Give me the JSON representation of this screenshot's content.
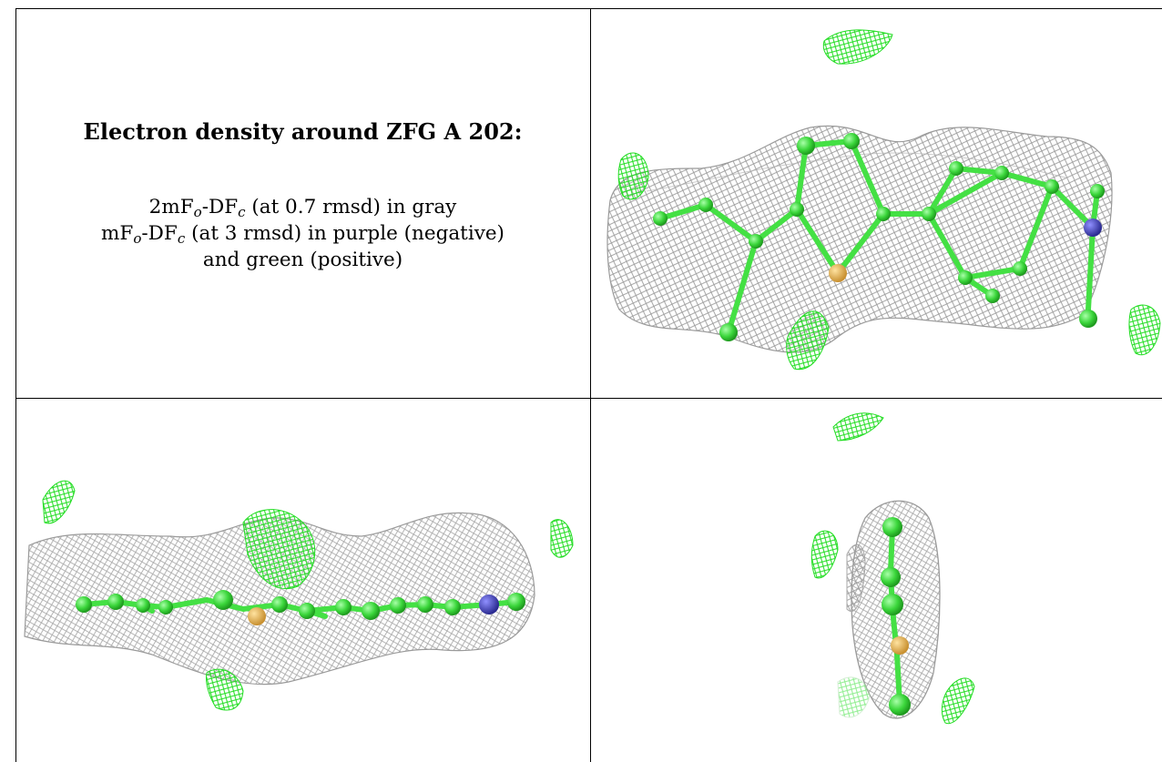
{
  "caption": {
    "title": "Electron density around ZFG A 202:",
    "line1": {
      "a": "2mF",
      "a_sub": "o",
      "b": "-DF",
      "b_sub": "c",
      "c": " (at 0.7 rmsd) in gray"
    },
    "line2": {
      "a": "mF",
      "a_sub": "o",
      "b": "-DF",
      "b_sub": "c",
      "c": " (at 3 rmsd) in purple (negative)"
    },
    "line3": "and green (positive)"
  },
  "colors": {
    "mesh_2fofc": "#9a9a9a",
    "mesh_positive": "#22dd22",
    "carbon": "#44e044",
    "sulfur": "#e0b040",
    "nitrogen": "#4040b8",
    "border": "#000000"
  },
  "icons": [
    "electron-density-mesh",
    "ligand-ball-and-stick"
  ]
}
